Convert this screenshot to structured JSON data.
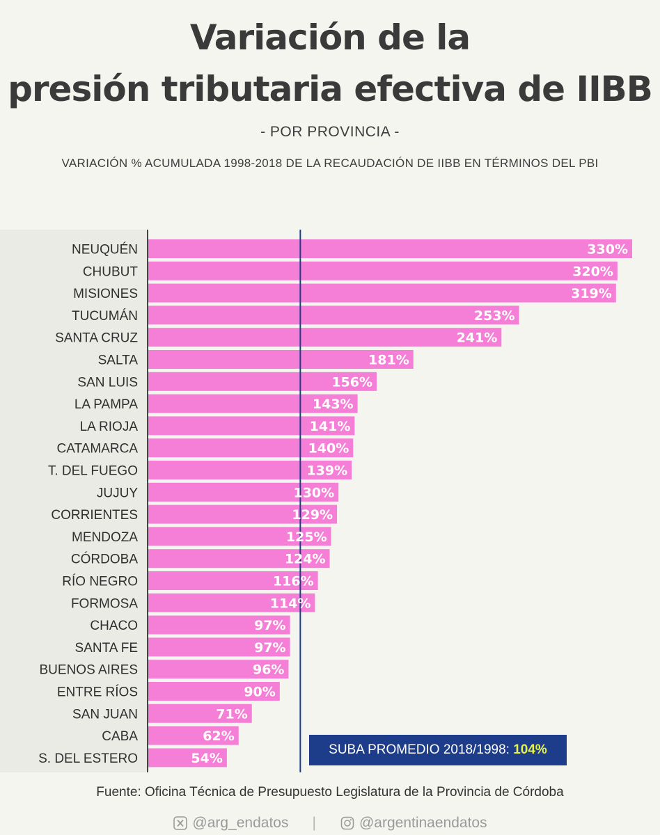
{
  "header": {
    "title_line1": "Variación de la",
    "title_line2": "presión tributaria efectiva de IIBB",
    "subtitle": "-   POR PROVINCIA -",
    "caption": "VARIACIÓN % ACUMULADA 1998-2018 DE LA RECAUDACIÓN DE IIBB EN TÉRMINOS DEL PBI"
  },
  "chart_data": {
    "type": "bar",
    "orientation": "horizontal",
    "categories": [
      "NEUQUÉN",
      "CHUBUT",
      "MISIONES",
      "TUCUMÁN",
      "SANTA CRUZ",
      "SALTA",
      "SAN LUIS",
      "LA PAMPA",
      "LA RIOJA",
      "CATAMARCA",
      "T. DEL FUEGO",
      "JUJUY",
      "CORRIENTES",
      "MENDOZA",
      "CÓRDOBA",
      "RÍO NEGRO",
      "FORMOSA",
      "CHACO",
      "SANTA FE",
      "BUENOS AIRES",
      "ENTRE RÍOS",
      "SAN JUAN",
      "CABA",
      "S. DEL ESTERO"
    ],
    "values": [
      330,
      320,
      319,
      253,
      241,
      181,
      156,
      143,
      141,
      140,
      139,
      130,
      129,
      125,
      124,
      116,
      114,
      97,
      97,
      96,
      90,
      71,
      62,
      54
    ],
    "value_labels": [
      "330%",
      "320%",
      "319%",
      "253%",
      "241%",
      "181%",
      "156%",
      "143%",
      "141%",
      "140%",
      "139%",
      "130%",
      "129%",
      "125%",
      "124%",
      "116%",
      "114%",
      "97%",
      "97%",
      "96%",
      "90%",
      "71%",
      "62%",
      "54%"
    ],
    "reference_line": {
      "value": 104
    },
    "xlim": [
      0,
      330
    ],
    "grid": false,
    "bar_color": "#f57fd6",
    "reference_color": "#1d3d8a"
  },
  "average": {
    "label": "SUBA PROMEDIO 2018/1998:",
    "value": "104%"
  },
  "source": "Fuente: Oficina Técnica de Presupuesto Legislatura de la Provincia de Córdoba",
  "footer": {
    "x_icon": "x-logo-icon",
    "x_handle": "@arg_endatos",
    "separator": "|",
    "instagram_icon": "instagram-icon",
    "instagram_handle": "@argentinaendatos"
  }
}
